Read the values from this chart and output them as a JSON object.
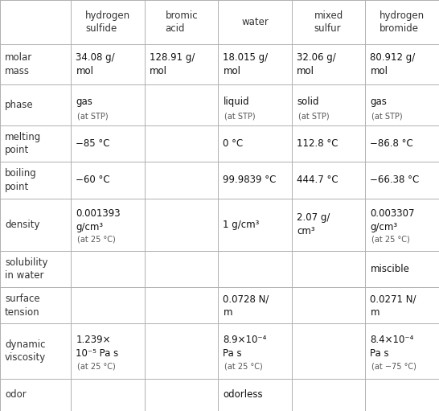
{
  "col_headers": [
    "",
    "hydrogen\nsulfide",
    "bromic\nacid",
    "water",
    "mixed\nsulfur",
    "hydrogen\nbromide"
  ],
  "rows": [
    {
      "label": "molar\nmass",
      "cells": [
        {
          "main": "34.08 g/\nmol",
          "sub": ""
        },
        {
          "main": "128.91 g/\nmol",
          "sub": ""
        },
        {
          "main": "18.015 g/\nmol",
          "sub": ""
        },
        {
          "main": "32.06 g/\nmol",
          "sub": ""
        },
        {
          "main": "80.912 g/\nmol",
          "sub": ""
        }
      ]
    },
    {
      "label": "phase",
      "cells": [
        {
          "main": "gas",
          "sub": "(at STP)"
        },
        {
          "main": "",
          "sub": ""
        },
        {
          "main": "liquid",
          "sub": "(at STP)"
        },
        {
          "main": "solid",
          "sub": "(at STP)"
        },
        {
          "main": "gas",
          "sub": "(at STP)"
        }
      ]
    },
    {
      "label": "melting\npoint",
      "cells": [
        {
          "main": "−85 °C",
          "sub": ""
        },
        {
          "main": "",
          "sub": ""
        },
        {
          "main": "0 °C",
          "sub": ""
        },
        {
          "main": "112.8 °C",
          "sub": ""
        },
        {
          "main": "−86.8 °C",
          "sub": ""
        }
      ]
    },
    {
      "label": "boiling\npoint",
      "cells": [
        {
          "main": "−60 °C",
          "sub": ""
        },
        {
          "main": "",
          "sub": ""
        },
        {
          "main": "99.9839 °C",
          "sub": ""
        },
        {
          "main": "444.7 °C",
          "sub": ""
        },
        {
          "main": "−66.38 °C",
          "sub": ""
        }
      ]
    },
    {
      "label": "density",
      "cells": [
        {
          "main": "0.001393\ng/cm³",
          "sub": "(at 25 °C)"
        },
        {
          "main": "",
          "sub": ""
        },
        {
          "main": "1 g/cm³",
          "sub": ""
        },
        {
          "main": "2.07 g/\ncm³",
          "sub": ""
        },
        {
          "main": "0.003307\ng/cm³",
          "sub": "(at 25 °C)"
        }
      ]
    },
    {
      "label": "solubility\nin water",
      "cells": [
        {
          "main": "",
          "sub": ""
        },
        {
          "main": "",
          "sub": ""
        },
        {
          "main": "",
          "sub": ""
        },
        {
          "main": "",
          "sub": ""
        },
        {
          "main": "miscible",
          "sub": ""
        }
      ]
    },
    {
      "label": "surface\ntension",
      "cells": [
        {
          "main": "",
          "sub": ""
        },
        {
          "main": "",
          "sub": ""
        },
        {
          "main": "0.0728 N/\nm",
          "sub": ""
        },
        {
          "main": "",
          "sub": ""
        },
        {
          "main": "0.0271 N/\nm",
          "sub": ""
        }
      ]
    },
    {
      "label": "dynamic\nviscosity",
      "cells": [
        {
          "main": "1.239×\n10⁻⁵ Pa s",
          "sub": "(at 25 °C)"
        },
        {
          "main": "",
          "sub": ""
        },
        {
          "main": "8.9×10⁻⁴\nPa s",
          "sub": "(at 25 °C)"
        },
        {
          "main": "",
          "sub": ""
        },
        {
          "main": "8.4×10⁻⁴\nPa s",
          "sub": "(at −75 °C)"
        }
      ]
    },
    {
      "label": "odor",
      "cells": [
        {
          "main": "",
          "sub": ""
        },
        {
          "main": "",
          "sub": ""
        },
        {
          "main": "odorless",
          "sub": ""
        },
        {
          "main": "",
          "sub": ""
        },
        {
          "main": "",
          "sub": ""
        }
      ]
    }
  ],
  "background_color": "#ffffff",
  "line_color": "#b0b0b0",
  "header_text_color": "#333333",
  "cell_text_color": "#111111",
  "label_text_color": "#333333",
  "sub_text_color": "#555555"
}
